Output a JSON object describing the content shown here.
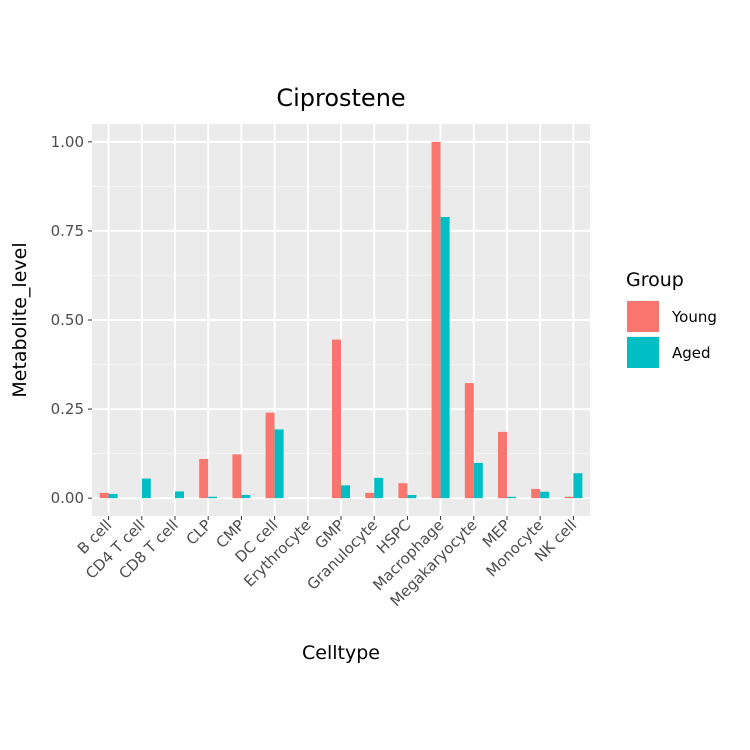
{
  "chart_data": {
    "type": "bar",
    "title": "Ciprostene",
    "xlabel": "Celltype",
    "ylabel": "Metabolite_level",
    "ylim": [
      -0.05,
      1.05
    ],
    "yticks": [
      0.0,
      0.25,
      0.5,
      0.75,
      1.0
    ],
    "ytick_labels": [
      "0.00",
      "0.25",
      "0.50",
      "0.75",
      "1.00"
    ],
    "grid": true,
    "legend": {
      "title": "Group",
      "placement": "right"
    },
    "categories": [
      "B cell",
      "CD4 T cell",
      "CD8 T cell",
      "CLP",
      "CMP",
      "DC cell",
      "Erythrocyte",
      "GMP",
      "Granulocyte",
      "HSPC",
      "Macrophage",
      "Megakaryocyte",
      "MEP",
      "Monocyte",
      "NK cell"
    ],
    "series": [
      {
        "name": "Young",
        "color": "#F8766D",
        "values": [
          0.015,
          0.0,
          0.0,
          0.11,
          0.123,
          0.24,
          0.0,
          0.445,
          0.015,
          0.042,
          1.0,
          0.323,
          0.186,
          0.026,
          0.004
        ]
      },
      {
        "name": "Aged",
        "color": "#00BFC4",
        "values": [
          0.012,
          0.055,
          0.019,
          0.004,
          0.009,
          0.193,
          0.0,
          0.036,
          0.057,
          0.009,
          0.789,
          0.099,
          0.004,
          0.018,
          0.07
        ]
      }
    ]
  }
}
